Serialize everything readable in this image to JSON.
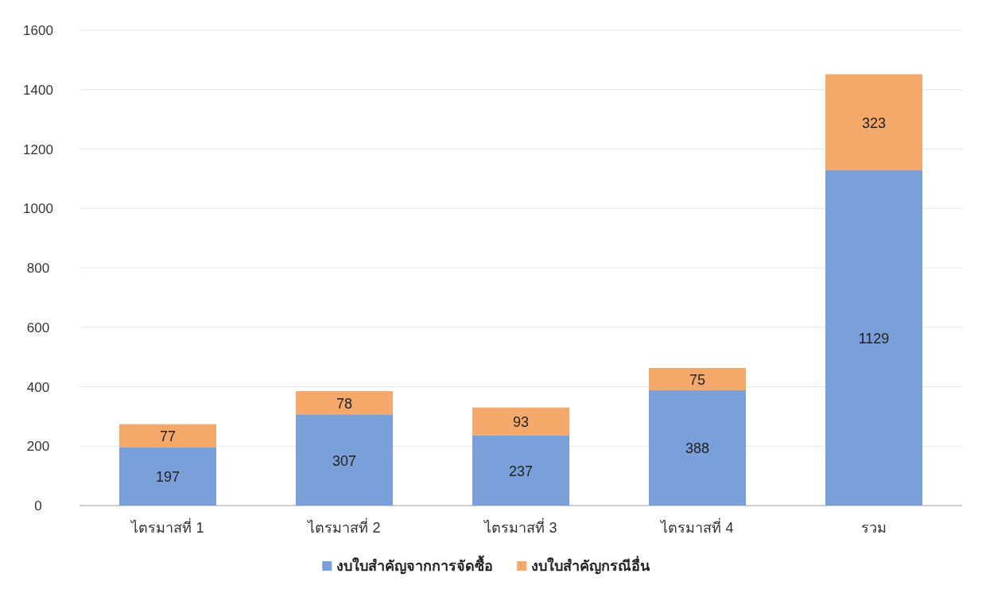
{
  "chart_data": {
    "type": "bar",
    "stacked": true,
    "categories": [
      "ไตรมาสที่ 1",
      "ไตรมาสที่ 2",
      "ไตรมาสที่ 3",
      "ไตรมาสที่ 4",
      "รวม"
    ],
    "series": [
      {
        "name": "งบใบสำคัญจากการจัดซื้อ",
        "color": "#7b9fd8",
        "values": [
          197,
          307,
          237,
          388,
          1129
        ]
      },
      {
        "name": "งบใบสำคัญกรณีอื่น",
        "color": "#f4a96a",
        "values": [
          77,
          78,
          93,
          75,
          323
        ]
      }
    ],
    "ylim": [
      0,
      1600
    ],
    "yticks": [
      0,
      200,
      400,
      600,
      800,
      1000,
      1200,
      1400,
      1600
    ],
    "grid": "y",
    "legend": "bottom",
    "data_labels": true
  }
}
